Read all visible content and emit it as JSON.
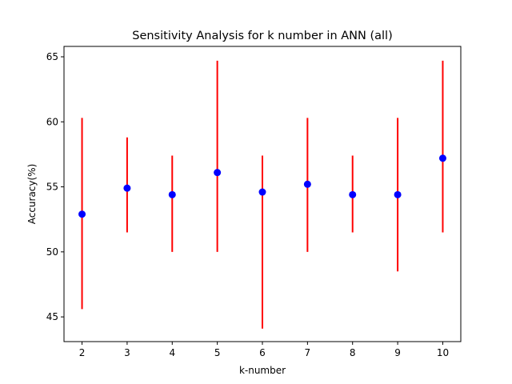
{
  "chart_data": {
    "type": "scatter",
    "title": "Sensitivity Analysis for k number in ANN (all)",
    "xlabel": "k-number",
    "ylabel": "Accuracy(%)",
    "x": [
      2,
      3,
      4,
      5,
      6,
      7,
      8,
      9,
      10
    ],
    "y": [
      52.9,
      54.9,
      54.4,
      56.1,
      54.6,
      55.2,
      54.4,
      54.4,
      57.2
    ],
    "error_low": [
      45.6,
      51.5,
      50.0,
      50.0,
      44.1,
      50.0,
      51.5,
      48.5,
      51.5
    ],
    "error_high": [
      60.3,
      58.8,
      57.4,
      64.7,
      57.4,
      60.3,
      57.4,
      60.3,
      64.7
    ],
    "xticks": [
      2,
      3,
      4,
      5,
      6,
      7,
      8,
      9,
      10
    ],
    "yticks": [
      45,
      50,
      55,
      60,
      65
    ],
    "xlim": [
      1.6,
      10.4
    ],
    "ylim": [
      43.1,
      65.8
    ],
    "marker_color": "#0000ff",
    "errorbar_color": "#ff0000",
    "grid": false
  }
}
